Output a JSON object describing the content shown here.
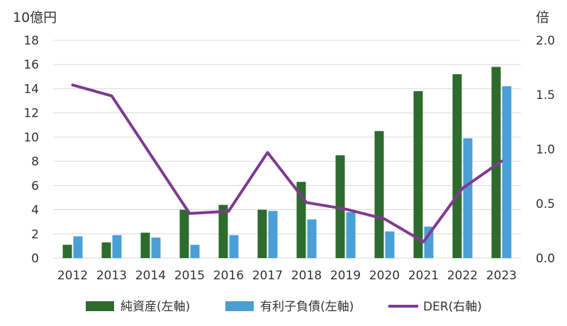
{
  "chart_data": {
    "type": "bar",
    "categories": [
      "2012",
      "2013",
      "2014",
      "2015",
      "2016",
      "2017",
      "2018",
      "2019",
      "2020",
      "2021",
      "2022",
      "2023"
    ],
    "series": [
      {
        "name": "純資産(左軸)",
        "type": "bar",
        "axis": "left",
        "color": "#2e6b2e",
        "values": [
          1.1,
          1.3,
          2.1,
          4.0,
          4.4,
          4.0,
          6.3,
          8.5,
          10.5,
          13.8,
          15.2,
          15.8
        ]
      },
      {
        "name": "有利子負債(左軸)",
        "type": "bar",
        "axis": "left",
        "color": "#4a9fd6",
        "values": [
          1.8,
          1.9,
          1.7,
          1.1,
          1.9,
          3.9,
          3.2,
          3.8,
          2.2,
          2.6,
          9.9,
          14.2
        ]
      },
      {
        "name": "DER(右軸)",
        "type": "line",
        "axis": "right",
        "color": "#7f3a8f",
        "values": [
          1.59,
          1.49,
          0.95,
          0.41,
          0.43,
          0.97,
          0.51,
          0.45,
          0.36,
          0.15,
          0.64,
          0.89
        ]
      }
    ],
    "y_left": {
      "unit": "10億円",
      "ylim": [
        0,
        18
      ],
      "ticks": [
        "0",
        "2",
        "4",
        "6",
        "8",
        "10",
        "12",
        "14",
        "16",
        "18"
      ]
    },
    "y_right": {
      "unit": "倍",
      "ylim": [
        0,
        2.0
      ],
      "ticks": [
        "0.0",
        "0.5",
        "1.0",
        "1.5",
        "2.0"
      ]
    },
    "grid": true,
    "legend_position": "bottom"
  }
}
